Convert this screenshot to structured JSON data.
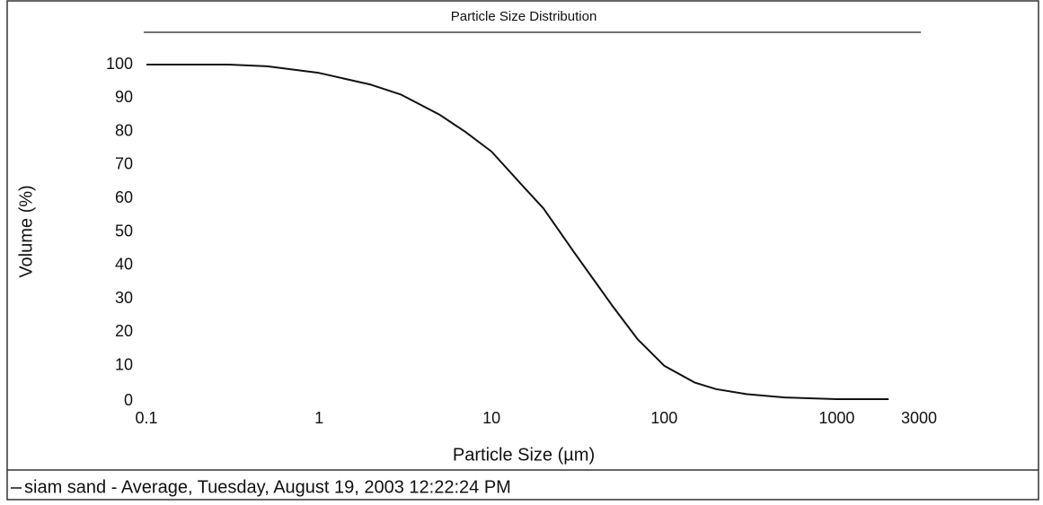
{
  "chart_data": {
    "type": "line",
    "title": "Particle Size Distribution",
    "x_label": "Particle Size (µm)",
    "y_label": "Volume (%)",
    "x_scale": "log",
    "xlim": [
      0.1,
      3000
    ],
    "xticks": [
      0.1,
      1,
      10,
      100,
      1000,
      3000
    ],
    "ylim": [
      0,
      100
    ],
    "yticks": [
      0,
      10,
      20,
      30,
      40,
      50,
      60,
      70,
      80,
      90,
      100
    ],
    "grid": false,
    "legend": "bottom",
    "x": [
      0.1,
      0.3,
      0.5,
      1,
      2,
      3,
      5,
      7,
      10,
      15,
      20,
      30,
      40,
      50,
      70,
      100,
      150,
      200,
      300,
      500,
      1000,
      2000
    ],
    "series": [
      {
        "name": "siam sand - Average, Tuesday, August 19, 2003 12:22:24 PM",
        "color": "#111111",
        "values": [
          100,
          100,
          99.5,
          97.5,
          94,
          91,
          85,
          80,
          74,
          64,
          57,
          44,
          35,
          28,
          18,
          10,
          5,
          3,
          1.5,
          0.5,
          0,
          0
        ]
      }
    ]
  }
}
